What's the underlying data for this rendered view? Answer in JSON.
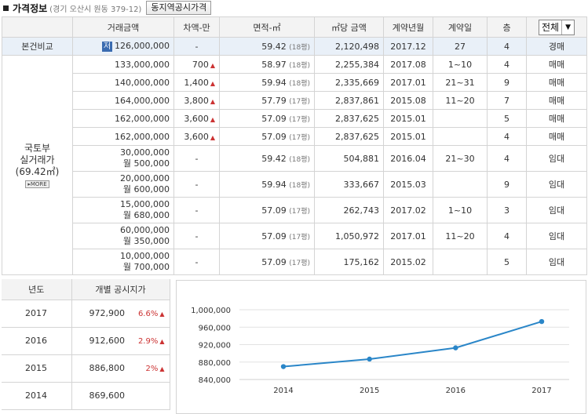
{
  "header": {
    "title": "가격정보",
    "subtitle": "(경기 오산시 원동 379-12)",
    "button_label": "동지역공시가격"
  },
  "table": {
    "columns": [
      "",
      "거래금액",
      "차액-만",
      "면적-㎡",
      "㎡당 금액",
      "계약년월",
      "계약일",
      "층"
    ],
    "filter_value": "전체",
    "base": {
      "label": "본건비교",
      "badge": "저",
      "price": "126,000,000",
      "diff": "-",
      "area": "59.42",
      "pyeong": "(18평)",
      "per_m2": "2,120,498",
      "ym": "2017.12",
      "day": "27",
      "floor": "4",
      "type": "경매"
    },
    "group": {
      "label1": "국토부",
      "label2": "실거래가",
      "area_note": "(69.42㎡)",
      "more": "MORE"
    },
    "rows": [
      {
        "price": "133,000,000",
        "deposit": "",
        "diff": "700",
        "up": "▲",
        "area": "58.97",
        "pyeong": "(18평)",
        "per_m2": "2,255,384",
        "ym": "2017.08",
        "day": "1~10",
        "floor": "4",
        "type": "매매"
      },
      {
        "price": "140,000,000",
        "deposit": "",
        "diff": "1,400",
        "up": "▲",
        "area": "59.94",
        "pyeong": "(18평)",
        "per_m2": "2,335,669",
        "ym": "2017.01",
        "day": "21~31",
        "floor": "9",
        "type": "매매"
      },
      {
        "price": "164,000,000",
        "deposit": "",
        "diff": "3,800",
        "up": "▲",
        "area": "57.79",
        "pyeong": "(17평)",
        "per_m2": "2,837,861",
        "ym": "2015.08",
        "day": "11~20",
        "floor": "7",
        "type": "매매"
      },
      {
        "price": "162,000,000",
        "deposit": "",
        "diff": "3,600",
        "up": "▲",
        "area": "57.09",
        "pyeong": "(17평)",
        "per_m2": "2,837,625",
        "ym": "2015.01",
        "day": "",
        "floor": "5",
        "type": "매매"
      },
      {
        "price": "162,000,000",
        "deposit": "",
        "diff": "3,600",
        "up": "▲",
        "area": "57.09",
        "pyeong": "(17평)",
        "per_m2": "2,837,625",
        "ym": "2015.01",
        "day": "",
        "floor": "4",
        "type": "매매"
      },
      {
        "price": "30,000,000",
        "deposit": "월 500,000",
        "diff": "-",
        "up": "",
        "area": "59.42",
        "pyeong": "(18평)",
        "per_m2": "504,881",
        "ym": "2016.04",
        "day": "21~30",
        "floor": "4",
        "type": "임대"
      },
      {
        "price": "20,000,000",
        "deposit": "월 600,000",
        "diff": "-",
        "up": "",
        "area": "59.94",
        "pyeong": "(18평)",
        "per_m2": "333,667",
        "ym": "2015.03",
        "day": "",
        "floor": "9",
        "type": "임대"
      },
      {
        "price": "15,000,000",
        "deposit": "월 680,000",
        "diff": "-",
        "up": "",
        "area": "57.09",
        "pyeong": "(17평)",
        "per_m2": "262,743",
        "ym": "2017.02",
        "day": "1~10",
        "floor": "3",
        "type": "임대"
      },
      {
        "price": "60,000,000",
        "deposit": "월 350,000",
        "diff": "-",
        "up": "",
        "area": "57.09",
        "pyeong": "(17평)",
        "per_m2": "1,050,972",
        "ym": "2017.01",
        "day": "11~20",
        "floor": "4",
        "type": "임대"
      },
      {
        "price": "10,000,000",
        "deposit": "월 700,000",
        "diff": "-",
        "up": "",
        "area": "57.09",
        "pyeong": "(17평)",
        "per_m2": "175,162",
        "ym": "2015.02",
        "day": "",
        "floor": "5",
        "type": "임대"
      }
    ]
  },
  "land": {
    "head_year": "년도",
    "head_price": "개별 공시지가",
    "rows": [
      {
        "year": "2017",
        "price": "972,900",
        "pct": "6.6%",
        "up": "▲"
      },
      {
        "year": "2016",
        "price": "912,600",
        "pct": "2.9%",
        "up": "▲"
      },
      {
        "year": "2015",
        "price": "886,800",
        "pct": "2%",
        "up": "▲"
      },
      {
        "year": "2014",
        "price": "869,600",
        "pct": "",
        "up": ""
      }
    ]
  },
  "chart_data": {
    "type": "line",
    "categories": [
      "2014",
      "2015",
      "2016",
      "2017"
    ],
    "values": [
      869600,
      886800,
      912600,
      972900
    ],
    "yticks": [
      "840,000",
      "880,000",
      "920,000",
      "960,000",
      "1,000,000"
    ],
    "ylim": [
      840000,
      1000000
    ],
    "grid": true,
    "line_color": "#2a86c8"
  }
}
